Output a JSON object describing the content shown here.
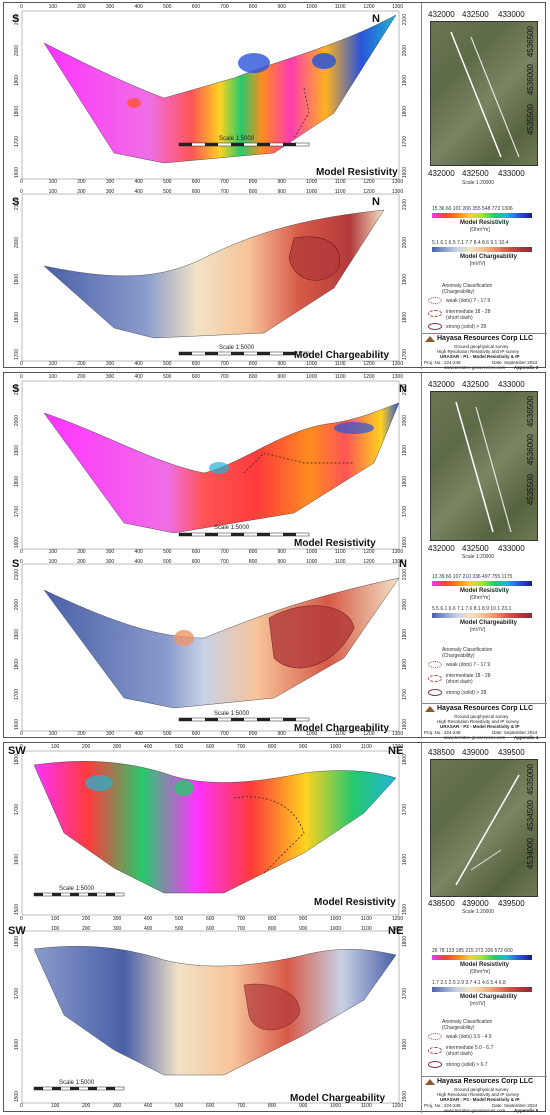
{
  "panels": [
    {
      "dir_left": "S",
      "dir_right": "N",
      "res_title": "Model Resistivity",
      "chg_title": "Model Chargeability",
      "scale": "Scale 1:5000",
      "x_ticks": [
        "0",
        "100",
        "200",
        "300",
        "400",
        "500",
        "600",
        "700",
        "800",
        "900",
        "1000",
        "1100",
        "1200",
        "1300"
      ],
      "res_elev": [
        "2100",
        "2000",
        "1900",
        "1800",
        "1700",
        "1600"
      ],
      "chg_elev": [
        "2100",
        "2000",
        "1900",
        "1800",
        "1700"
      ],
      "map_top": [
        "432000",
        "432500",
        "433000"
      ],
      "map_side": [
        "4536500",
        "4536000",
        "4535500",
        "4535000"
      ],
      "map_scale": "Scale 1:20000",
      "res_bar_ticks": "15  36  60  101  206  355  548  773  1306",
      "res_leg_title": "Model Resistivity",
      "res_leg_unit": "[Ohm*m]",
      "chg_bar_ticks": "5.1  6.1  6.5  7.1  7.7  8.4  8.6  9.1  10.4",
      "chg_leg_title": "Model Chargeability",
      "chg_leg_unit": "[mV/V]",
      "anom_title": "Anomaly Classification (Chargeability)",
      "weak": "weak (dots) 7 - 17.9",
      "inter": "intermediate 18 - 28",
      "inter2": "(short dash)",
      "strong": "strong (solid) > 28",
      "company": "Hayasa Resources Corp LLC",
      "survey": "Ground geophysical survey",
      "survey2": "High Resolution Resistivity and IP survey",
      "line": "URASAR - P1 - Model Resistivity & IP",
      "projno": "Proj. No.: 224-248",
      "date": "Date: September 2024",
      "web": "www.terratec-geoservices.com",
      "appendix": "Appendix 3"
    },
    {
      "dir_left": "S",
      "dir_right": "N",
      "res_title": "Model Resistivity",
      "chg_title": "Model Chargeability",
      "scale": "Scale 1:5000",
      "x_ticks": [
        "0",
        "100",
        "200",
        "300",
        "400",
        "500",
        "600",
        "700",
        "800",
        "900",
        "1000",
        "1100",
        "1200",
        "1300"
      ],
      "res_elev": [
        "2100",
        "2000",
        "1900",
        "1800",
        "1700",
        "1600"
      ],
      "chg_elev": [
        "2100",
        "2000",
        "1900",
        "1800",
        "1700",
        "1600"
      ],
      "map_top": [
        "432000",
        "432500",
        "433000"
      ],
      "map_side": [
        "4536500",
        "4536000",
        "4535500",
        "4535000"
      ],
      "map_scale": "Scale 1:20000",
      "res_bar_ticks": "13  39  60  107  210  336  497  755  1175",
      "res_leg_title": "Model Resistivity",
      "res_leg_unit": "[Ohm*m]",
      "chg_bar_ticks": "5.5  6.1  6.6  7.1  7.6  8.1  8.9  10.1  23.1",
      "chg_leg_title": "Model Chargeability",
      "chg_leg_unit": "[mV/V]",
      "anom_title": "Anomaly Classification (Chargeability)",
      "weak": "weak (dots) 7 - 17.9",
      "inter": "intermediate 18 - 28",
      "inter2": "(short dash)",
      "strong": "strong (solid) > 28",
      "company": "Hayasa Resources Corp LLC",
      "survey": "Ground geophysical survey",
      "survey2": "High Resolution Resistivity and IP survey",
      "line": "URASAR - P2 - Model Resistivity & IP",
      "projno": "Proj. No.: 224-248",
      "date": "Date: September 2024",
      "web": "www.terratec-geoservices.com",
      "appendix": "Appendix 4"
    },
    {
      "dir_left": "SW",
      "dir_right": "NE",
      "res_title": "Model Resistivity",
      "chg_title": "Model Chargeability",
      "scale": "Scale 1:5000",
      "x_ticks": [
        "0",
        "100",
        "200",
        "300",
        "400",
        "500",
        "600",
        "700",
        "800",
        "900",
        "1000",
        "1100",
        "1200"
      ],
      "res_elev": [
        "1800",
        "1700",
        "1600",
        "1500"
      ],
      "chg_elev": [
        "1800",
        "1700",
        "1600",
        "1500"
      ],
      "map_top": [
        "438500",
        "439000",
        "439500"
      ],
      "map_side": [
        "4535000",
        "4534500",
        "4534000",
        "4533500"
      ],
      "map_bottom": [
        "438500",
        "439000",
        "439500"
      ],
      "map_scale": "Scale 1:20000",
      "res_bar_ticks": "26  78  133  185  215  273  326  572  660",
      "res_leg_title": "Model Resistivity",
      "res_leg_unit": "[Ohm*m]",
      "chg_bar_ticks": "1.7  2.1  2.5  2.9  3.7  4.1  4.6  5.4  6.8",
      "chg_leg_title": "Model Chargeability",
      "chg_leg_unit": "[mV/V]",
      "anom_title": "Anomaly Classification (Chargeability)",
      "weak": "weak (dots) 3.5 - 4.9",
      "inter": "intermediate 5.0 - 6.7",
      "inter2": "(short dash)",
      "strong": "strong (solid) > 6.7",
      "company": "Hayasa Resources Corp LLC",
      "survey": "Ground geophysical survey",
      "survey2": "High Resolution Resistivity and IP survey",
      "line": "URASAR - P3 - Model Resistivity & IP",
      "projno": "Proj. No.: 224-248",
      "date": "Date: September 2024",
      "web": "www.terratec-geoservices.com",
      "appendix": "Appendix 5"
    }
  ],
  "colors": {
    "res_scale": [
      "#ff33ff",
      "#e84fd0",
      "#ff3b3b",
      "#ff7f1f",
      "#ffd21f",
      "#9ee63a",
      "#27c96b",
      "#1fb3d6",
      "#2a54d9",
      "#1a1a8c"
    ],
    "chg_scale": [
      "#4a5fa8",
      "#8a9ccc",
      "#c8d2e6",
      "#f2e2c6",
      "#f7c49a",
      "#ef9368",
      "#d75a47",
      "#b33a3a",
      "#8c2a3c"
    ]
  }
}
